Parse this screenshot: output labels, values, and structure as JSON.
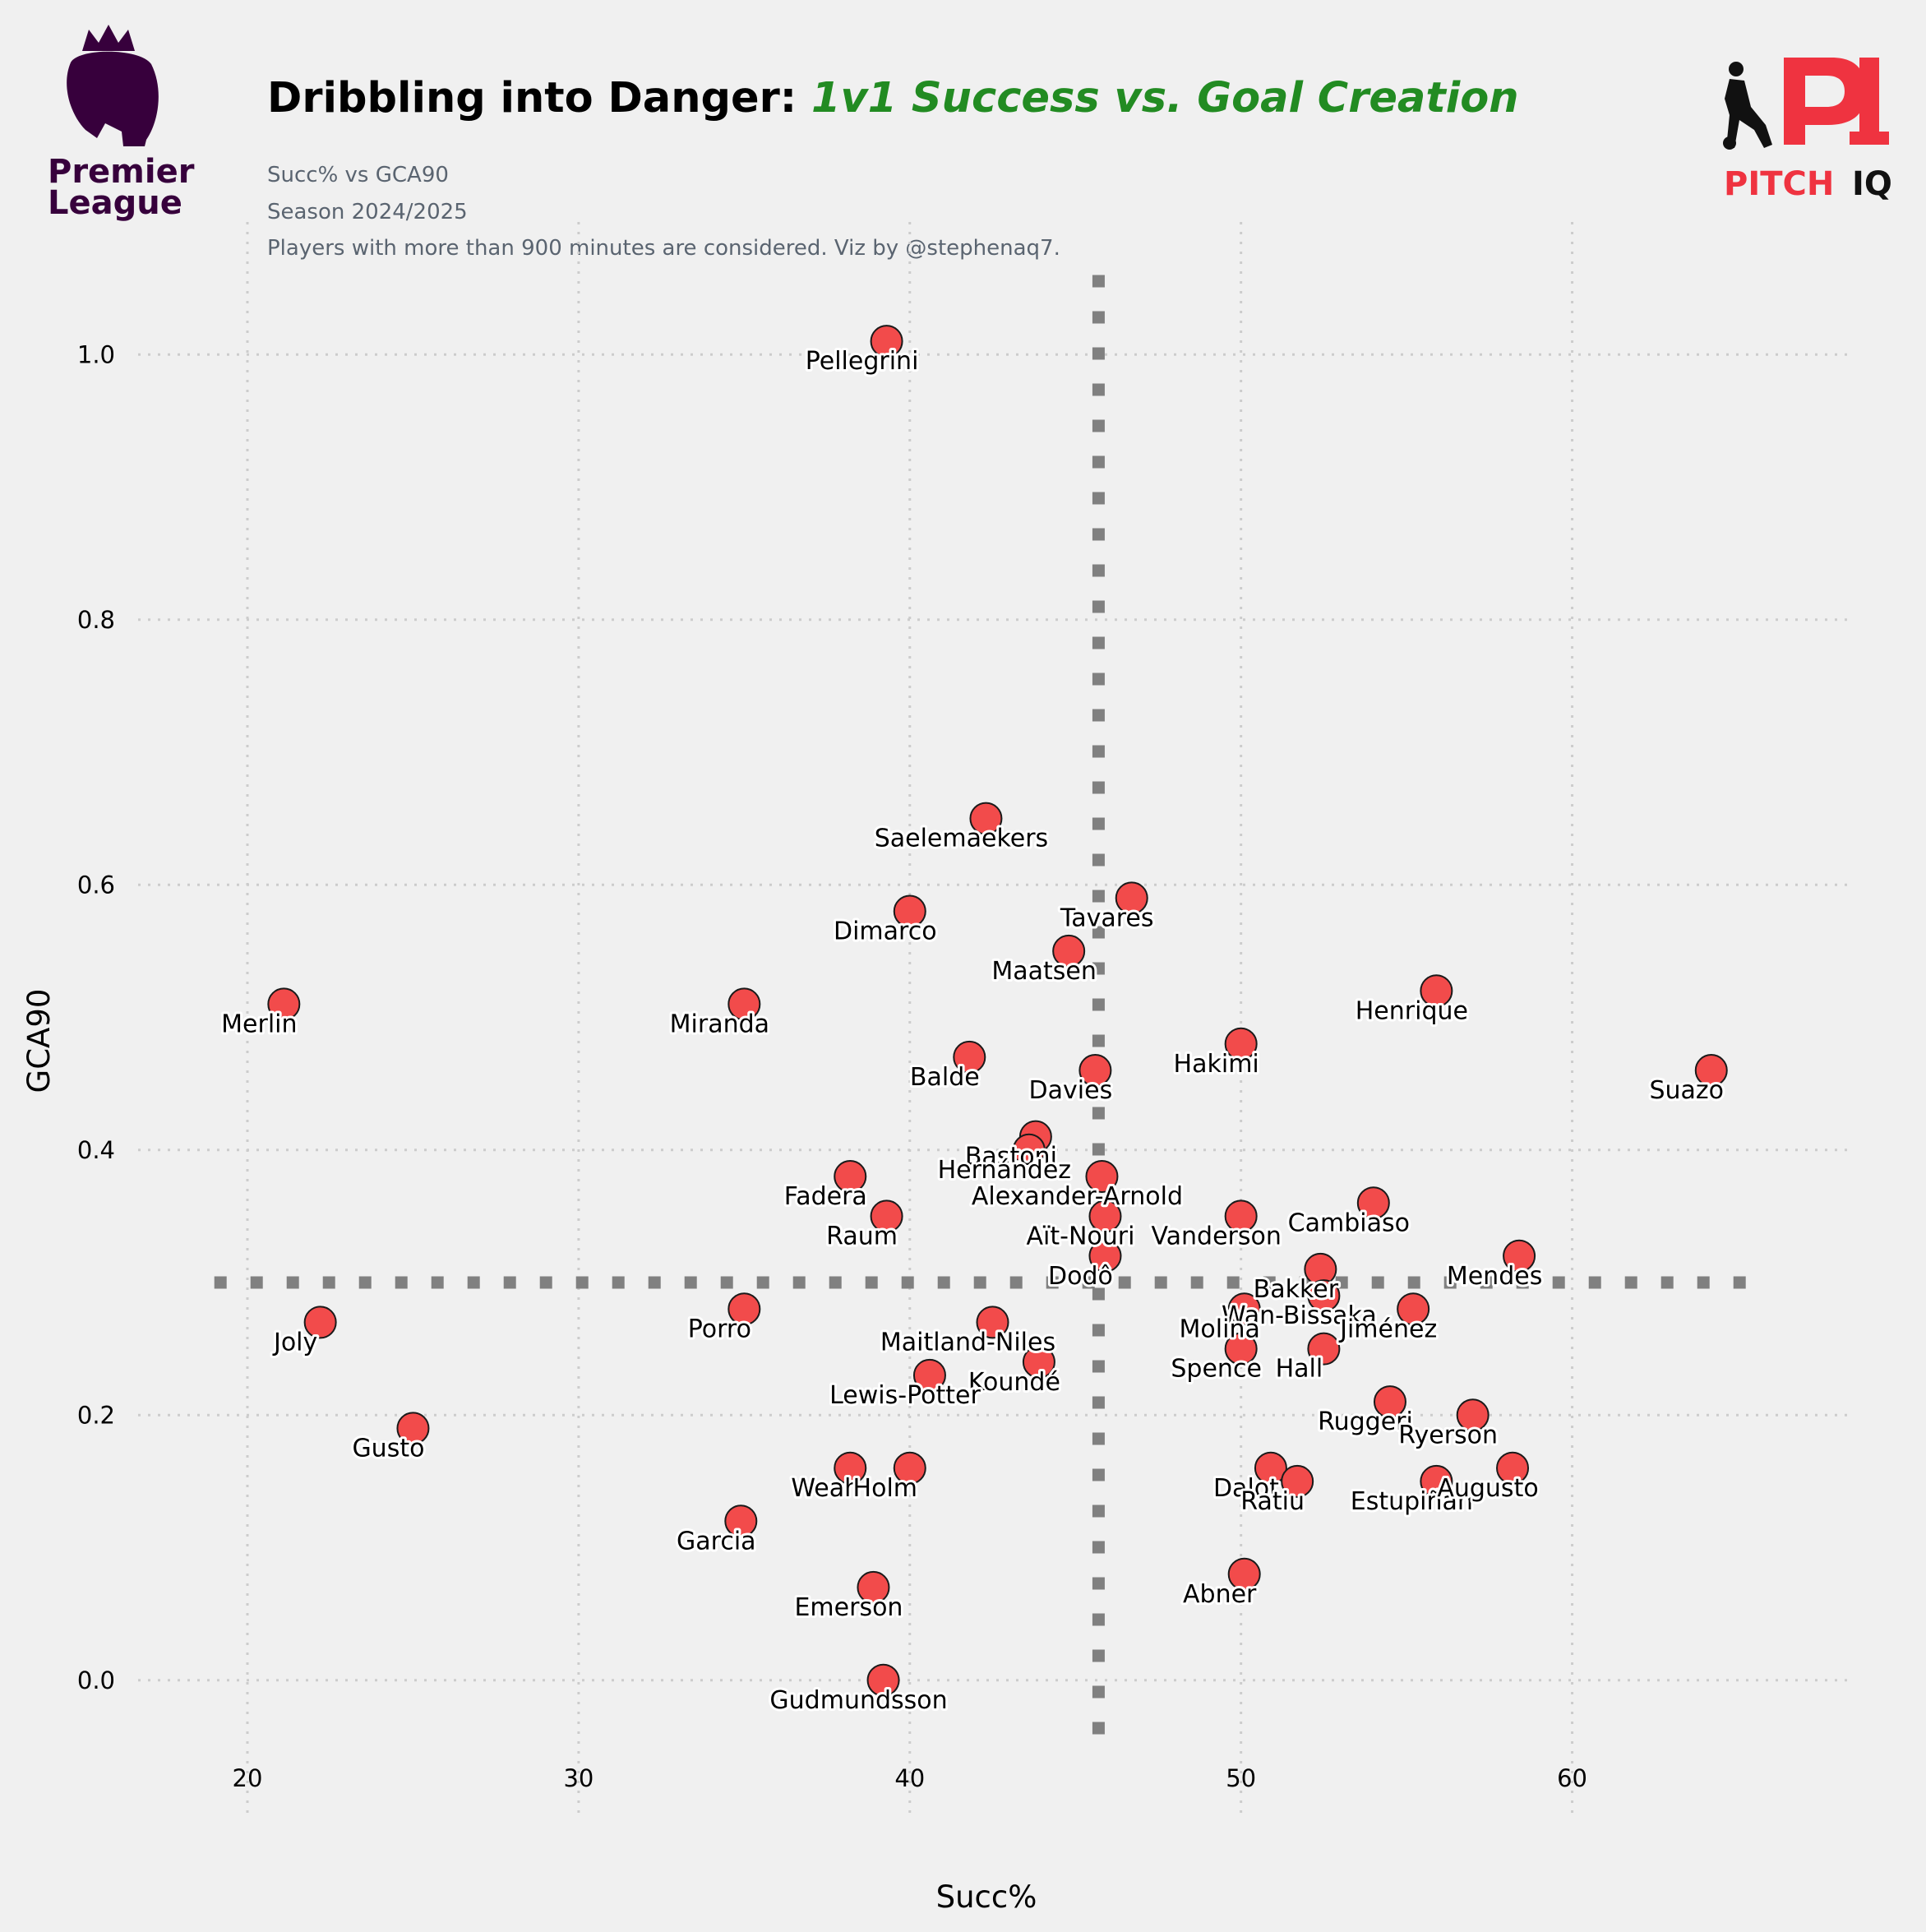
{
  "branding": {
    "league_line1": "Premier",
    "league_line2": "League",
    "pitchiq_pitch": "PITCH",
    "pitchiq_iq": "IQ"
  },
  "colors": {
    "point": "#f24b4b",
    "title_accent": "#228b22",
    "average_line": "#808080",
    "background": "#f0f0f0"
  },
  "chart_data": {
    "type": "scatter",
    "title": "Dribbling into Danger:",
    "title_accent": "1v1 Success vs. Goal Creation",
    "subtitle_lines": [
      "Succ% vs GCA90",
      "Season 2024/2025",
      "Players with more than 900 minutes are considered. Viz by @stephenaq7."
    ],
    "xlabel": "Succ%",
    "ylabel": "GCA90",
    "xlim": [
      16.5,
      68.5
    ],
    "ylim": [
      -0.1,
      1.1
    ],
    "xticks": [
      20,
      30,
      40,
      50,
      60
    ],
    "yticks": [
      0.0,
      0.2,
      0.4,
      0.6,
      0.8,
      1.0
    ],
    "grid": true,
    "average_lines": {
      "x": 45.7,
      "y": 0.3
    },
    "points": [
      {
        "label": "Pellegrini",
        "x": 39.3,
        "y": 1.01
      },
      {
        "label": "Saelemaekers",
        "x": 42.3,
        "y": 0.65
      },
      {
        "label": "Tavares",
        "x": 46.7,
        "y": 0.59
      },
      {
        "label": "Dimarco",
        "x": 40.0,
        "y": 0.58
      },
      {
        "label": "Maatsen",
        "x": 44.8,
        "y": 0.55
      },
      {
        "label": "Henrique",
        "x": 55.9,
        "y": 0.52
      },
      {
        "label": "Merlin",
        "x": 21.1,
        "y": 0.51
      },
      {
        "label": "Miranda",
        "x": 35.0,
        "y": 0.51
      },
      {
        "label": "Hakimi",
        "x": 50.0,
        "y": 0.48
      },
      {
        "label": "Balde",
        "x": 41.8,
        "y": 0.47
      },
      {
        "label": "Davies",
        "x": 45.6,
        "y": 0.46
      },
      {
        "label": "Suazo",
        "x": 64.2,
        "y": 0.46
      },
      {
        "label": "Bastoni",
        "x": 43.8,
        "y": 0.41
      },
      {
        "label": "Hernández",
        "x": 43.6,
        "y": 0.4
      },
      {
        "label": "Fadera",
        "x": 38.2,
        "y": 0.38
      },
      {
        "label": "Alexander-Arnold",
        "x": 45.8,
        "y": 0.38
      },
      {
        "label": "Raum",
        "x": 39.3,
        "y": 0.35
      },
      {
        "label": "Aït-Nouri",
        "x": 45.9,
        "y": 0.35
      },
      {
        "label": "Vanderson",
        "x": 50.0,
        "y": 0.35
      },
      {
        "label": "Cambiaso",
        "x": 54.0,
        "y": 0.36
      },
      {
        "label": "Dodô",
        "x": 45.9,
        "y": 0.32
      },
      {
        "label": "Mendes",
        "x": 58.4,
        "y": 0.32
      },
      {
        "label": "Bakker",
        "x": 52.4,
        "y": 0.31
      },
      {
        "label": "Wan-Bissaka",
        "x": 52.5,
        "y": 0.29
      },
      {
        "label": "Molina",
        "x": 50.1,
        "y": 0.28
      },
      {
        "label": "Jiménez",
        "x": 55.2,
        "y": 0.28
      },
      {
        "label": "Joly",
        "x": 22.2,
        "y": 0.27
      },
      {
        "label": "Porro",
        "x": 35.0,
        "y": 0.28
      },
      {
        "label": "Maitland-Niles",
        "x": 42.5,
        "y": 0.27
      },
      {
        "label": "Spence",
        "x": 50.0,
        "y": 0.25
      },
      {
        "label": "Hall",
        "x": 52.5,
        "y": 0.25
      },
      {
        "label": "Koundé",
        "x": 43.9,
        "y": 0.24
      },
      {
        "label": "Lewis-Potter",
        "x": 40.6,
        "y": 0.23
      },
      {
        "label": "Ruggeri",
        "x": 54.5,
        "y": 0.21
      },
      {
        "label": "Ryerson",
        "x": 57.0,
        "y": 0.2
      },
      {
        "label": "Gusto",
        "x": 25.0,
        "y": 0.19
      },
      {
        "label": "Weah",
        "x": 38.2,
        "y": 0.16
      },
      {
        "label": "Holm",
        "x": 40.0,
        "y": 0.16
      },
      {
        "label": "Dalot",
        "x": 50.9,
        "y": 0.16
      },
      {
        "label": "Ratiu",
        "x": 51.7,
        "y": 0.15
      },
      {
        "label": "Estupiñán",
        "x": 55.9,
        "y": 0.15
      },
      {
        "label": "Augusto",
        "x": 58.2,
        "y": 0.16
      },
      {
        "label": "Garcia",
        "x": 34.9,
        "y": 0.12
      },
      {
        "label": "Abner",
        "x": 50.1,
        "y": 0.08
      },
      {
        "label": "Emerson",
        "x": 38.9,
        "y": 0.07
      },
      {
        "label": "Gudmundsson",
        "x": 39.2,
        "y": 0.0
      }
    ]
  }
}
